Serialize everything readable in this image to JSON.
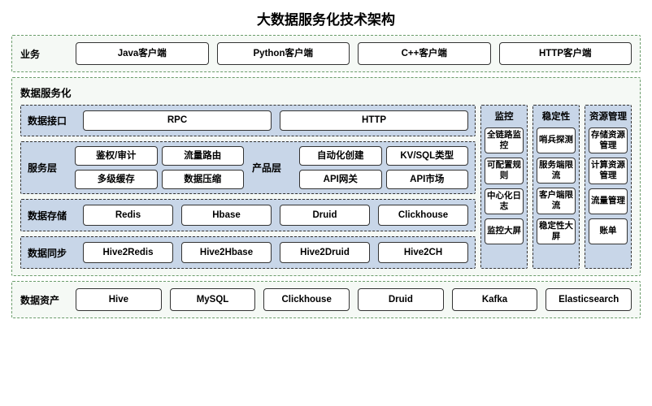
{
  "title": "大数据服务化技术架构",
  "colors": {
    "layer_bg": "#c8d6e8",
    "outer_bg": "rgba(225,237,226,0.35)",
    "outer_border": "#6b9c6b",
    "node_bg": "#ffffff",
    "node_border": "#333333",
    "text": "#000000",
    "dash_border": "#333333"
  },
  "business": {
    "label": "业务",
    "items": [
      "Java客户端",
      "Python客户端",
      "C++客户端",
      "HTTP客户端"
    ]
  },
  "service": {
    "label": "数据服务化",
    "interface": {
      "label": "数据接口",
      "items": [
        "RPC",
        "HTTP"
      ]
    },
    "svc_layer": {
      "left": {
        "label": "服务层",
        "items": [
          "鉴权/审计",
          "流量路由",
          "多级缓存",
          "数据压缩"
        ]
      },
      "right": {
        "label": "产品层",
        "items": [
          "自动化创建",
          "KV/SQL类型",
          "API网关",
          "API市场"
        ]
      }
    },
    "storage": {
      "label": "数据存储",
      "items": [
        "Redis",
        "Hbase",
        "Druid",
        "Clickhouse"
      ]
    },
    "sync": {
      "label": "数据同步",
      "items": [
        "Hive2Redis",
        "Hive2Hbase",
        "Hive2Druid",
        "Hive2CH"
      ]
    },
    "sidecols": [
      {
        "title": "监控",
        "items": [
          "全链路监控",
          "可配置规则",
          "中心化日志",
          "监控大屏"
        ]
      },
      {
        "title": "稳定性",
        "items": [
          "哨兵探测",
          "服务端限流",
          "客户端限流",
          "稳定性大屏"
        ]
      },
      {
        "title": "资源管理",
        "items": [
          "存储资源管理",
          "计算资源管理",
          "流量管理",
          "账单"
        ]
      }
    ]
  },
  "asset": {
    "label": "数据资产",
    "items": [
      "Hive",
      "MySQL",
      "Clickhouse",
      "Druid",
      "Kafka",
      "Elasticsearch"
    ]
  },
  "fonts": {
    "title_size": 17,
    "label_size": 12,
    "pill_size": 11.5,
    "side_pill_size": 10.5
  }
}
